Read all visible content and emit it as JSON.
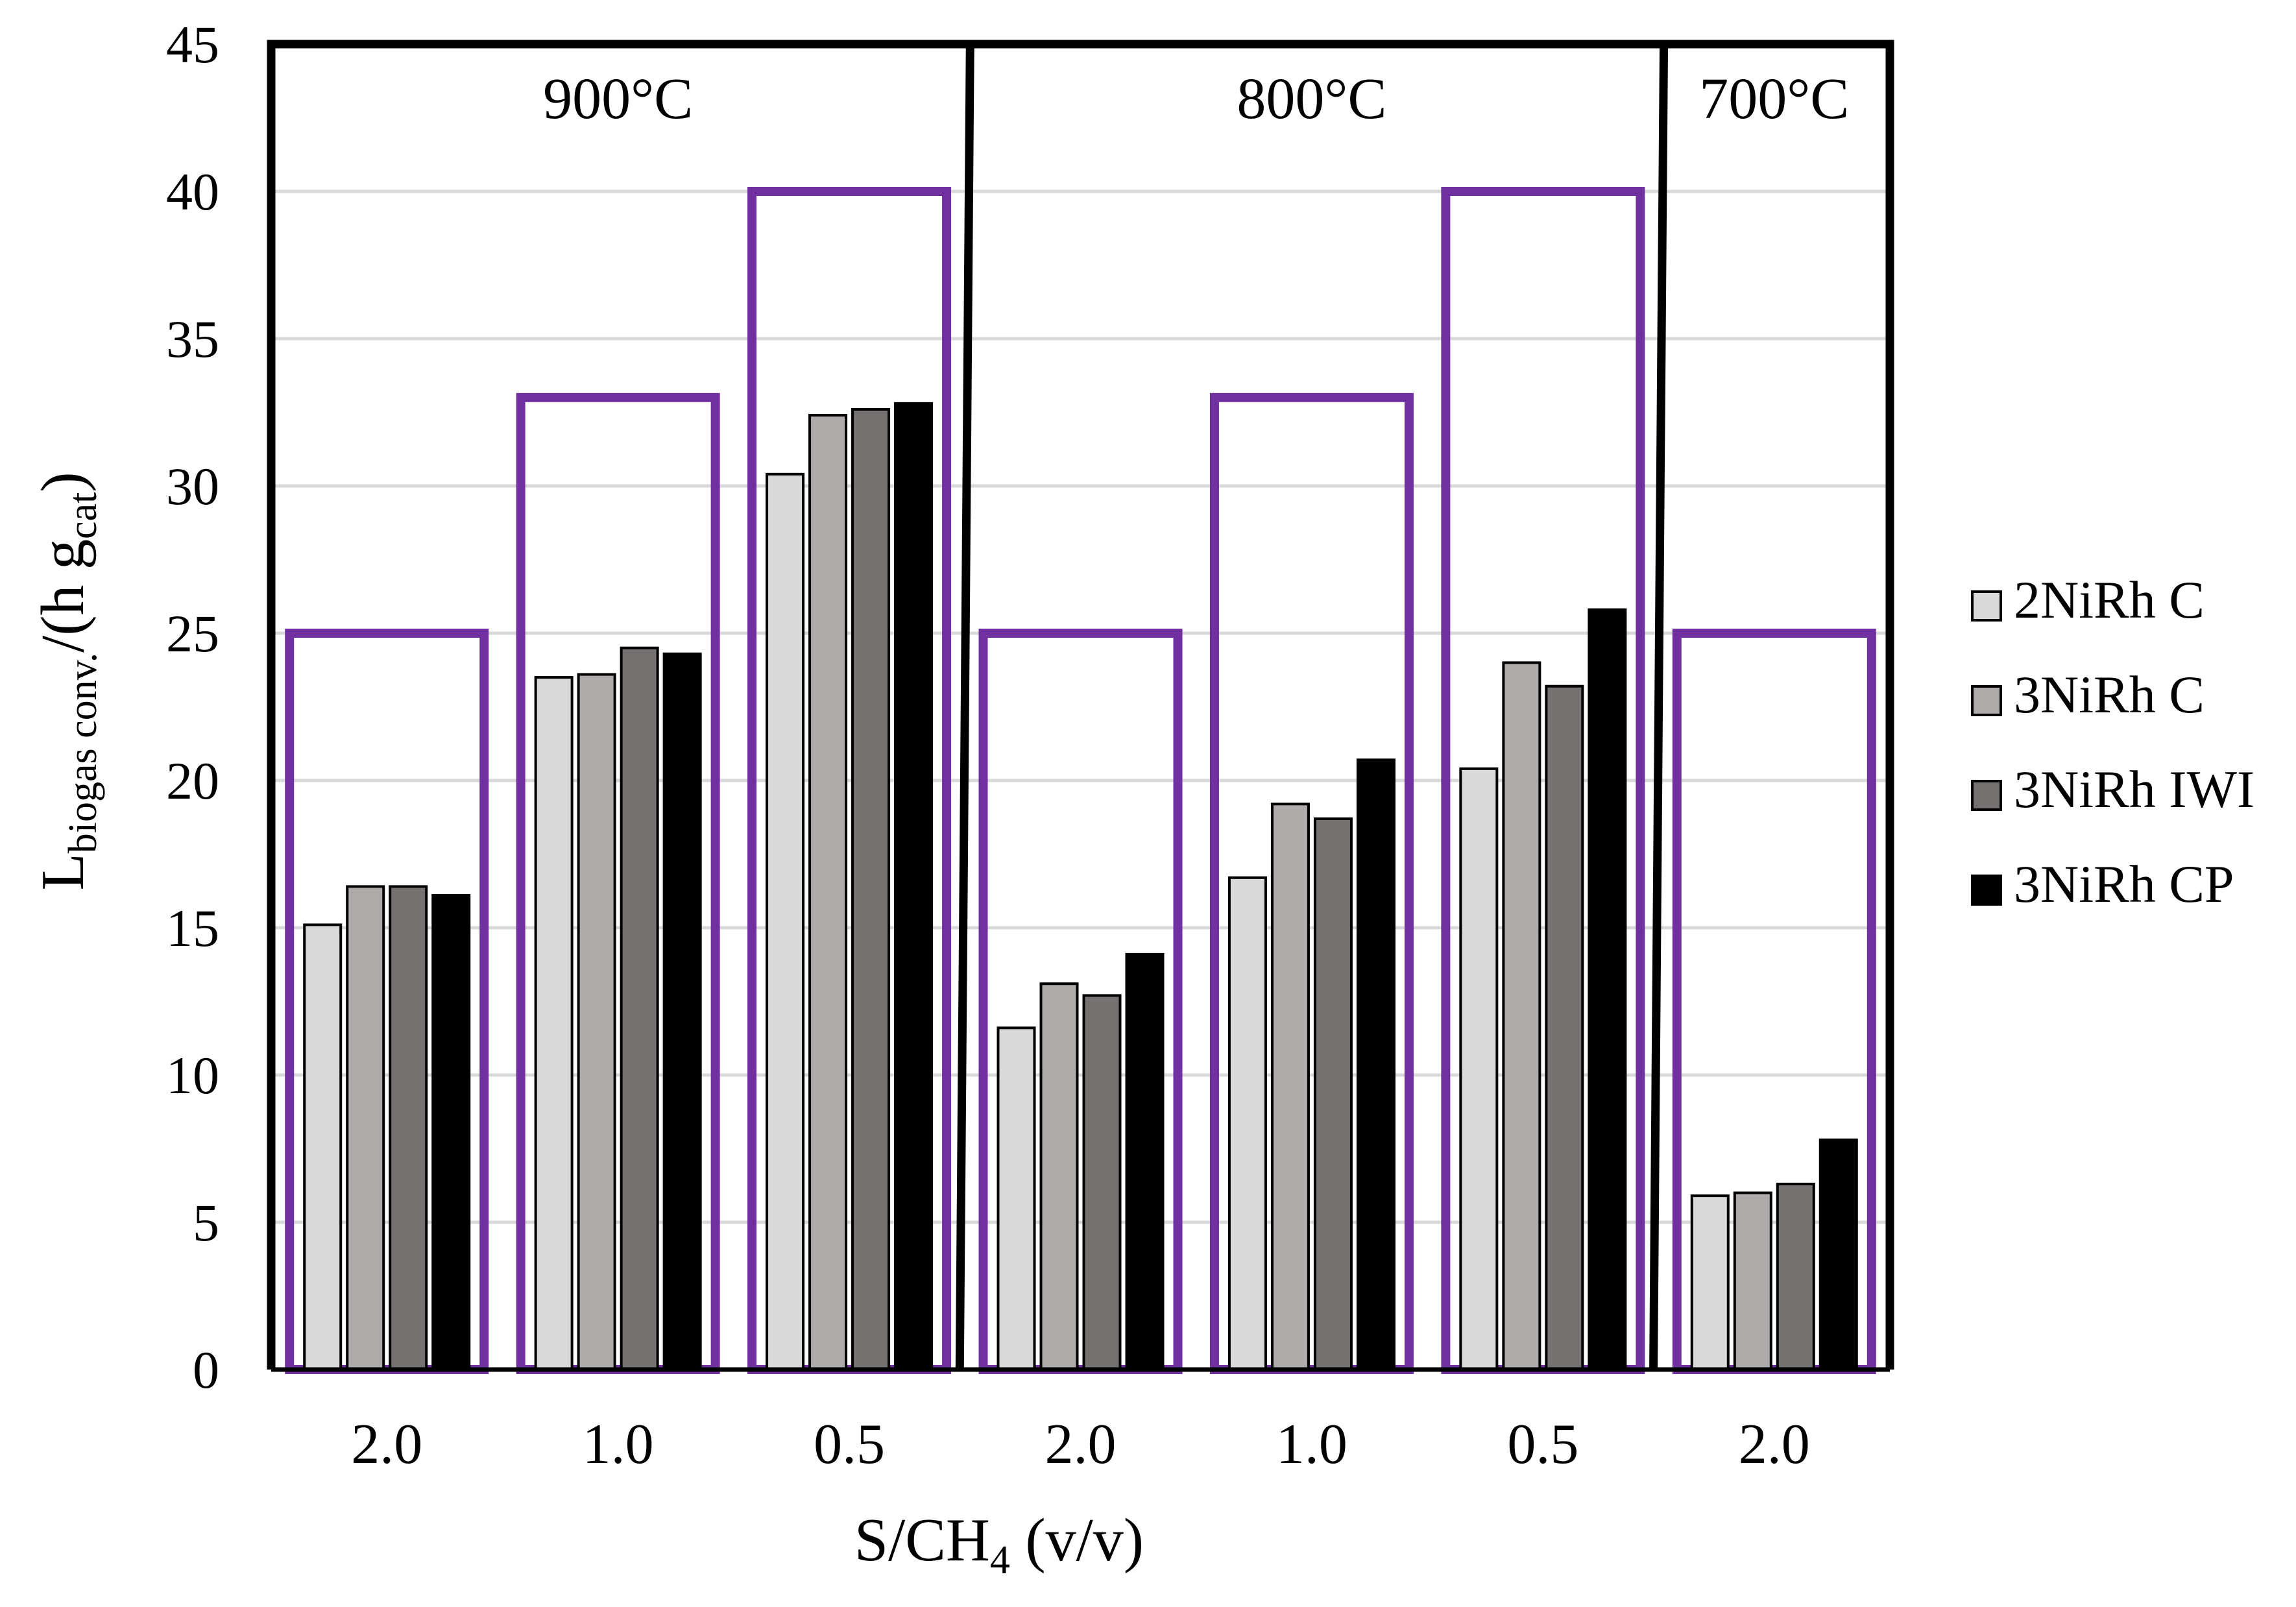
{
  "chart_data": {
    "type": "bar",
    "xlabel": {
      "main": "S/CH",
      "sub": "4",
      "rest": " (v/v)"
    },
    "ylabel": {
      "main": "L",
      "sub1": "biogas conv.",
      "mid": "/(h g",
      "sub2": "cat",
      "end": ")"
    },
    "ylim": [
      0,
      45
    ],
    "yticks": [
      0,
      5,
      10,
      15,
      20,
      25,
      30,
      35,
      40,
      45
    ],
    "grid": true,
    "legend_position": "right",
    "temperature_groups": [
      {
        "label": "900°C",
        "categories": [
          0,
          1,
          2
        ]
      },
      {
        "label": "800°C",
        "categories": [
          3,
          4,
          5
        ]
      },
      {
        "label": "700°C",
        "categories": [
          6
        ]
      }
    ],
    "categories": [
      "2.0",
      "1.0",
      "0.5",
      "2.0",
      "1.0",
      "0.5",
      "2.0"
    ],
    "highlight_box_tops": [
      25,
      33,
      40,
      25,
      33,
      40,
      25
    ],
    "series": [
      {
        "name": "2NiRh C",
        "color": "#d9d9d9",
        "values": [
          15.1,
          23.5,
          30.4,
          11.6,
          16.7,
          20.4,
          5.9
        ]
      },
      {
        "name": "3NiRh C",
        "color": "#aeaaaa",
        "values": [
          16.4,
          23.6,
          32.4,
          13.1,
          19.2,
          24.0,
          6.0
        ]
      },
      {
        "name": "3NiRh IWI",
        "color": "#767171",
        "values": [
          16.4,
          24.5,
          32.6,
          12.7,
          18.7,
          23.2,
          6.3
        ]
      },
      {
        "name": "3NiRh CP",
        "color": "#000000",
        "values": [
          16.1,
          24.3,
          32.8,
          14.1,
          20.7,
          25.8,
          7.8
        ]
      }
    ],
    "highlight_color": "#7030a0"
  }
}
